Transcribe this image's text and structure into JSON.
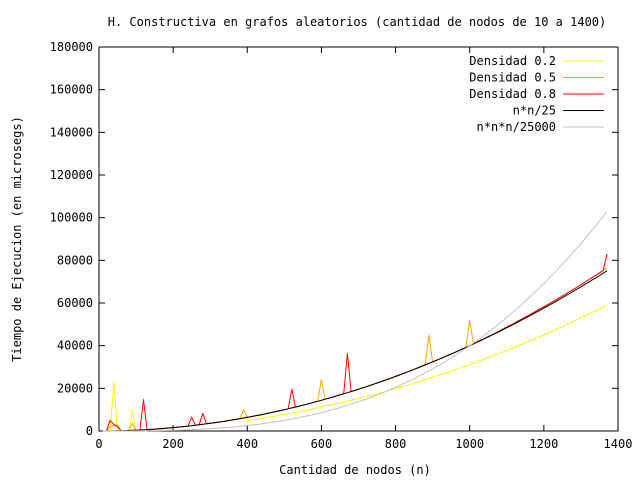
{
  "chart_data": {
    "type": "line",
    "title": "H. Constructiva en grafos aleatorios (cantidad de nodos de 10 a 1400)",
    "xlabel": "Cantidad de nodos (n)",
    "ylabel": "Tiempo de Ejecucion (en microsegs)",
    "xlim": [
      0,
      1400
    ],
    "ylim": [
      0,
      180000
    ],
    "xticks": [
      0,
      200,
      400,
      600,
      800,
      1000,
      1200,
      1400
    ],
    "yticks": [
      0,
      20000,
      40000,
      60000,
      80000,
      100000,
      120000,
      140000,
      160000,
      180000
    ],
    "xtick_labels": [
      "0",
      "200",
      "400",
      "600",
      "800",
      "1000",
      "1200",
      "1400"
    ],
    "ytick_labels": [
      "0",
      "20000",
      "40000",
      "60000",
      "80000",
      "100000",
      "120000",
      "140000",
      "160000",
      "180000"
    ],
    "grid": false,
    "legend_position": "top-right",
    "x": [
      10,
      20,
      30,
      40,
      50,
      60,
      70,
      80,
      90,
      100,
      110,
      120,
      130,
      140,
      150,
      160,
      170,
      180,
      190,
      200,
      210,
      220,
      230,
      240,
      250,
      260,
      270,
      280,
      290,
      300,
      310,
      320,
      330,
      340,
      350,
      360,
      370,
      380,
      390,
      400,
      410,
      420,
      430,
      440,
      450,
      460,
      470,
      480,
      490,
      500,
      510,
      520,
      530,
      540,
      550,
      560,
      570,
      580,
      590,
      600,
      610,
      620,
      630,
      640,
      650,
      660,
      670,
      680,
      690,
      700,
      710,
      720,
      730,
      740,
      750,
      760,
      770,
      780,
      790,
      800,
      810,
      820,
      830,
      840,
      850,
      860,
      870,
      880,
      890,
      900,
      910,
      920,
      930,
      940,
      950,
      960,
      970,
      980,
      990,
      1000,
      1010,
      1020,
      1030,
      1040,
      1050,
      1060,
      1070,
      1080,
      1090,
      1100,
      1110,
      1120,
      1130,
      1140,
      1150,
      1160,
      1170,
      1180,
      1190,
      1200,
      1210,
      1220,
      1230,
      1240,
      1250,
      1260,
      1270,
      1280,
      1290,
      1300,
      1310,
      1320,
      1330,
      1340,
      1350,
      1360,
      1370
    ],
    "series": [
      {
        "name": "Densidad 0.2",
        "color": "#ffff00",
        "values": [
          0,
          0,
          0,
          23000,
          0,
          0,
          0,
          0,
          9500,
          0,
          0,
          0,
          0,
          700,
          800,
          1000,
          1100,
          1300,
          1400,
          1600,
          1800,
          1900,
          2100,
          2300,
          2500,
          2700,
          2900,
          3100,
          3400,
          3600,
          3800,
          4100,
          4300,
          4600,
          4900,
          5200,
          5400,
          5800,
          6100,
          4800,
          5100,
          5400,
          5600,
          5900,
          6200,
          6600,
          6900,
          7100,
          7500,
          7800,
          8100,
          8400,
          8700,
          9100,
          9500,
          9800,
          10200,
          10500,
          10900,
          11300,
          11700,
          12000,
          12400,
          12800,
          13200,
          13500,
          14000,
          14400,
          14800,
          15200,
          15700,
          16100,
          16600,
          17000,
          17400,
          17900,
          18400,
          18900,
          19400,
          19900,
          20400,
          20900,
          21400,
          21900,
          22500,
          23000,
          23500,
          24100,
          24600,
          25200,
          25800,
          26300,
          26900,
          27500,
          28100,
          28700,
          29300,
          29900,
          30500,
          31100,
          31800,
          32400,
          33100,
          33700,
          34400,
          35000,
          35700,
          36400,
          37100,
          37800,
          38500,
          39200,
          39900,
          40600,
          41300,
          42100,
          42800,
          43500,
          44300,
          45100,
          45800,
          46600,
          47400,
          48200,
          48900,
          49700,
          50500,
          51400,
          52200,
          53000,
          53800,
          54700,
          55500,
          56300,
          57200,
          58100,
          58900
        ]
      },
      {
        "name": "Densidad 0.5",
        "color": "#ffa500",
        "values": [
          0,
          0,
          2000,
          2500,
          3000,
          0,
          0,
          0,
          3700,
          0,
          0,
          0,
          0,
          700,
          800,
          1000,
          1100,
          1300,
          1400,
          1600,
          1800,
          1900,
          2100,
          2300,
          2500,
          2700,
          2900,
          3100,
          3400,
          3600,
          3800,
          4100,
          4300,
          4600,
          4900,
          5200,
          5400,
          5800,
          10000,
          6400,
          6700,
          7100,
          7400,
          7700,
          8100,
          8500,
          8800,
          9200,
          9600,
          10000,
          10400,
          10800,
          11200,
          11700,
          12100,
          12500,
          13000,
          13500,
          13900,
          24000,
          14900,
          15400,
          15900,
          16400,
          16900,
          17400,
          17900,
          18500,
          19000,
          19600,
          20200,
          20700,
          21300,
          21900,
          22500,
          23100,
          23700,
          24300,
          24900,
          25600,
          26200,
          26900,
          27500,
          28200,
          28900,
          29600,
          30300,
          31000,
          45000,
          32400,
          33100,
          33900,
          34600,
          35400,
          36100,
          36900,
          37700,
          38500,
          39300,
          52000,
          40900,
          41700,
          42600,
          43400,
          44300,
          45100,
          46000,
          46900,
          47800,
          48700,
          49600,
          50500,
          51500,
          52400,
          53400,
          54300,
          55300,
          56300,
          57300,
          58200,
          59200,
          60200,
          61200,
          62300,
          63300,
          64300,
          65400,
          66400,
          67500,
          68600,
          69700,
          70800,
          71900,
          73000,
          74100,
          75200,
          76300
        ]
      },
      {
        "name": "Densidad 0.8",
        "color": "#ff0000",
        "values": [
          0,
          0,
          5000,
          3000,
          2000,
          0,
          0,
          0,
          0,
          0,
          0,
          14700,
          0,
          700,
          800,
          1000,
          1100,
          1300,
          1400,
          1600,
          1800,
          1900,
          2100,
          2300,
          6500,
          2700,
          2900,
          8300,
          3400,
          3600,
          3800,
          4100,
          4300,
          4600,
          4900,
          5200,
          5400,
          5800,
          6100,
          6400,
          6700,
          7100,
          7400,
          7700,
          8100,
          8500,
          8800,
          9200,
          9600,
          10000,
          10400,
          19500,
          11200,
          11700,
          12100,
          12500,
          13000,
          13500,
          13900,
          14400,
          14900,
          15400,
          15900,
          16400,
          16900,
          17400,
          36300,
          18500,
          19000,
          19600,
          20200,
          20700,
          21300,
          21900,
          22500,
          23100,
          23700,
          24300,
          24900,
          25600,
          26200,
          26900,
          27500,
          28200,
          28900,
          29600,
          30300,
          31000,
          31700,
          32400,
          33100,
          33900,
          34600,
          35400,
          36100,
          36900,
          37700,
          38500,
          39300,
          40100,
          40900,
          41700,
          42600,
          43400,
          44300,
          45100,
          46000,
          46900,
          47800,
          48700,
          49600,
          50500,
          51500,
          52400,
          53400,
          54300,
          55300,
          56300,
          57300,
          58200,
          59200,
          60200,
          61200,
          62300,
          63300,
          64300,
          65400,
          66400,
          67500,
          68600,
          69700,
          70800,
          71900,
          73000,
          74100,
          75200,
          83000
        ]
      },
      {
        "name": "n*n/25",
        "color": "#000000",
        "values": [
          4,
          16,
          36,
          64,
          100,
          144,
          196,
          256,
          324,
          400,
          484,
          576,
          676,
          784,
          900,
          1024,
          1156,
          1296,
          1444,
          1600,
          1764,
          1936,
          2116,
          2304,
          2500,
          2704,
          2916,
          3136,
          3364,
          3600,
          3844,
          4096,
          4356,
          4624,
          4900,
          5184,
          5476,
          5776,
          6084,
          6400,
          6724,
          7056,
          7396,
          7744,
          8100,
          8464,
          8836,
          9216,
          9604,
          10000,
          10404,
          10816,
          11236,
          11664,
          12100,
          12544,
          12996,
          13456,
          13924,
          14400,
          14884,
          15376,
          15876,
          16384,
          16900,
          17424,
          17956,
          18496,
          19044,
          19600,
          20164,
          20736,
          21316,
          21904,
          22500,
          23104,
          23716,
          24336,
          24964,
          25600,
          26244,
          26896,
          27556,
          28224,
          28900,
          29584,
          30276,
          30976,
          31684,
          32400,
          33124,
          33856,
          34596,
          35344,
          36100,
          36864,
          37636,
          38416,
          39204,
          40000,
          40804,
          41616,
          42436,
          43264,
          44100,
          44944,
          45796,
          46656,
          47524,
          48400,
          49284,
          50176,
          51076,
          51984,
          52900,
          53824,
          54756,
          55696,
          56644,
          57600,
          58564,
          59536,
          60516,
          61504,
          62500,
          63504,
          64516,
          65536,
          66564,
          67600,
          68644,
          69696,
          70756,
          71824,
          72900,
          73984,
          75076
        ]
      },
      {
        "name": "n*n*n/25000",
        "color": "#c0c0c0",
        "values": [
          0,
          0,
          1,
          3,
          5,
          9,
          14,
          20,
          29,
          40,
          53,
          69,
          88,
          110,
          135,
          164,
          197,
          233,
          274,
          320,
          370,
          426,
          487,
          553,
          625,
          703,
          787,
          878,
          976,
          1080,
          1192,
          1311,
          1437,
          1572,
          1715,
          1866,
          2026,
          2195,
          2373,
          2560,
          2757,
          2963,
          3180,
          3407,
          3645,
          3893,
          4152,
          4424,
          4706,
          5000,
          5306,
          5624,
          5955,
          6298,
          6655,
          7025,
          7408,
          7805,
          8215,
          8640,
          9079,
          9533,
          10002,
          10486,
          10985,
          11500,
          12031,
          12578,
          13141,
          13720,
          14316,
          14930,
          15561,
          16209,
          16875,
          17559,
          18262,
          18983,
          19722,
          20480,
          21258,
          22055,
          22871,
          23708,
          24565,
          25442,
          26340,
          27259,
          28199,
          29160,
          30143,
          31148,
          32175,
          33224,
          34295,
          35389,
          36506,
          37647,
          38811,
          40000,
          41212,
          42448,
          43709,
          44995,
          46305,
          47641,
          49002,
          50388,
          51801,
          53240,
          54705,
          56197,
          57715,
          59261,
          60835,
          62435,
          64063,
          65720,
          67404,
          69120,
          70862,
          72634,
          74436,
          76267,
          78125,
          80015,
          81934,
          83886,
          85867,
          87880,
          89924,
          91999,
          94106,
          96246,
          98415,
          100618,
          102853
        ]
      }
    ]
  }
}
